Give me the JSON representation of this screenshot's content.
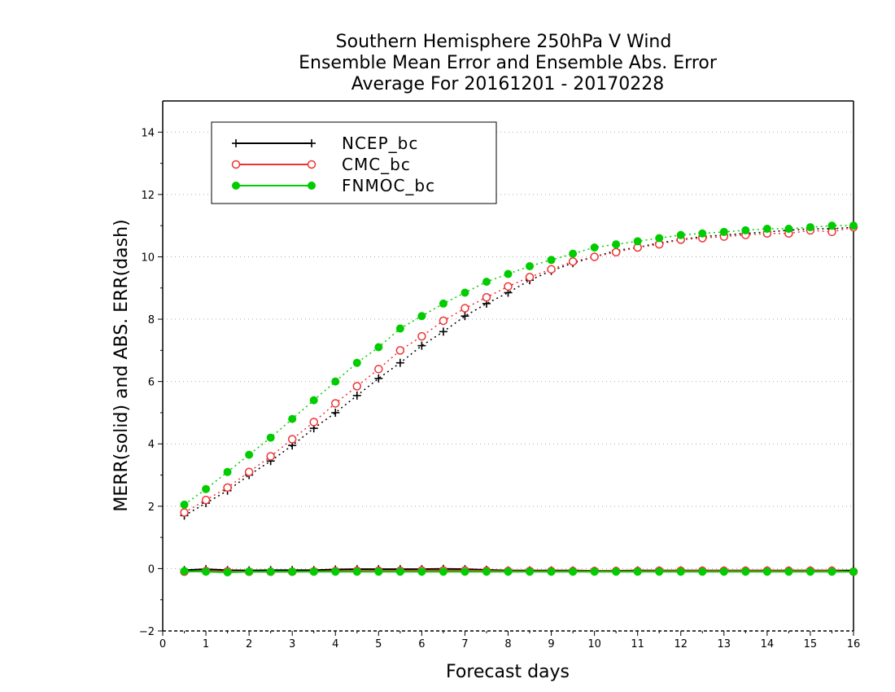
{
  "chart_data": {
    "type": "line",
    "title": [
      "Southern Hemisphere 250hPa V Wind",
      "Ensemble Mean Error and Ensemble Abs. Error",
      "Average For 20161201 - 20170228"
    ],
    "xlabel": "Forecast days",
    "ylabel": "MERR(solid) and ABS. ERR(dash)",
    "xlim": [
      0,
      16
    ],
    "ylim": [
      -2,
      15
    ],
    "xticks": [
      0,
      1,
      2,
      3,
      4,
      5,
      6,
      7,
      8,
      9,
      10,
      11,
      12,
      13,
      14,
      15,
      16
    ],
    "yticks": [
      -2,
      0,
      2,
      4,
      6,
      8,
      10,
      12,
      14
    ],
    "grid": "horizontal dotted",
    "legend_position": "top-left",
    "x": [
      0.5,
      1,
      1.5,
      2,
      2.5,
      3,
      3.5,
      4,
      4.5,
      5,
      5.5,
      6,
      6.5,
      7,
      7.5,
      8,
      8.5,
      9,
      9.5,
      10,
      10.5,
      11,
      11.5,
      12,
      12.5,
      13,
      13.5,
      14,
      14.5,
      15,
      15.5,
      16
    ],
    "series": [
      {
        "name": "NCEP_bc",
        "color": "#000000",
        "marker": "plus",
        "abs_err": [
          1.7,
          2.1,
          2.5,
          3.0,
          3.45,
          3.95,
          4.5,
          5.0,
          5.55,
          6.1,
          6.6,
          7.15,
          7.6,
          8.1,
          8.5,
          8.85,
          9.25,
          9.55,
          9.8,
          10.0,
          10.2,
          10.3,
          10.45,
          10.55,
          10.65,
          10.7,
          10.75,
          10.8,
          10.85,
          10.9,
          10.9,
          10.95
        ],
        "mean_err": [
          -0.05,
          -0.02,
          -0.05,
          -0.06,
          -0.05,
          -0.05,
          -0.05,
          -0.03,
          -0.02,
          -0.02,
          -0.02,
          -0.02,
          -0.01,
          -0.02,
          -0.04,
          -0.06,
          -0.06,
          -0.06,
          -0.06,
          -0.07,
          -0.07,
          -0.06,
          -0.06,
          -0.06,
          -0.06,
          -0.06,
          -0.06,
          -0.06,
          -0.06,
          -0.06,
          -0.06,
          -0.06
        ]
      },
      {
        "name": "CMC_bc",
        "color": "#ee3333",
        "marker": "open-circle",
        "abs_err": [
          1.8,
          2.2,
          2.6,
          3.1,
          3.6,
          4.15,
          4.7,
          5.3,
          5.85,
          6.4,
          7.0,
          7.45,
          7.95,
          8.35,
          8.7,
          9.05,
          9.35,
          9.6,
          9.85,
          10.0,
          10.15,
          10.3,
          10.4,
          10.55,
          10.6,
          10.65,
          10.7,
          10.75,
          10.75,
          10.85,
          10.8,
          10.95
        ],
        "mean_err": [
          -0.1,
          -0.08,
          -0.09,
          -0.1,
          -0.1,
          -0.1,
          -0.09,
          -0.08,
          -0.07,
          -0.07,
          -0.07,
          -0.06,
          -0.06,
          -0.06,
          -0.07,
          -0.08,
          -0.08,
          -0.08,
          -0.08,
          -0.08,
          -0.08,
          -0.08,
          -0.07,
          -0.07,
          -0.07,
          -0.07,
          -0.07,
          -0.07,
          -0.07,
          -0.07,
          -0.07,
          -0.1
        ]
      },
      {
        "name": "FNMOC_bc",
        "color": "#00cc00",
        "marker": "filled-circle",
        "abs_err": [
          2.05,
          2.55,
          3.1,
          3.65,
          4.2,
          4.8,
          5.4,
          6.0,
          6.6,
          7.1,
          7.7,
          8.1,
          8.5,
          8.85,
          9.2,
          9.45,
          9.7,
          9.9,
          10.1,
          10.3,
          10.4,
          10.5,
          10.6,
          10.7,
          10.75,
          10.8,
          10.85,
          10.9,
          10.9,
          10.95,
          11.0,
          11.0
        ],
        "mean_err": [
          -0.08,
          -0.1,
          -0.12,
          -0.1,
          -0.1,
          -0.1,
          -0.1,
          -0.1,
          -0.1,
          -0.1,
          -0.1,
          -0.1,
          -0.1,
          -0.1,
          -0.1,
          -0.1,
          -0.1,
          -0.1,
          -0.1,
          -0.1,
          -0.1,
          -0.1,
          -0.1,
          -0.1,
          -0.1,
          -0.1,
          -0.1,
          -0.1,
          -0.1,
          -0.1,
          -0.1,
          -0.1
        ]
      }
    ]
  }
}
